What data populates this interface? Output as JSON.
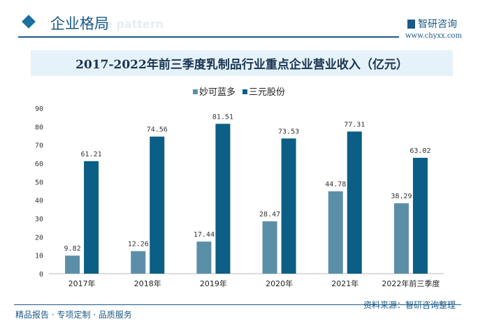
{
  "header": {
    "title": "企业格局",
    "subtitle_en": "e pattern",
    "logo": "智研咨询",
    "site": "www.chyxx.com"
  },
  "footer": {
    "left": "精品报告 · 专项定制 · 品质服务",
    "source": "资料来源：智研咨询整理"
  },
  "colors": {
    "series1": "#5b8fa8",
    "series2": "#0b5e85"
  },
  "chart_data": {
    "type": "bar",
    "title": "2017-2022年前三季度乳制品行业重点企业营业收入（亿元）",
    "categories": [
      "2017年",
      "2018年",
      "2019年",
      "2020年",
      "2021年",
      "2022年前三季度"
    ],
    "series": [
      {
        "name": "妙可蓝多",
        "values": [
          9.82,
          12.26,
          17.44,
          28.47,
          44.78,
          38.29
        ]
      },
      {
        "name": "三元股份",
        "values": [
          61.21,
          74.56,
          81.51,
          73.53,
          77.31,
          63.02
        ]
      }
    ],
    "ylim": [
      0,
      90
    ],
    "yticks": [
      0,
      10,
      20,
      30,
      40,
      50,
      60,
      70,
      80,
      90
    ],
    "legend": "top",
    "grid": false
  }
}
